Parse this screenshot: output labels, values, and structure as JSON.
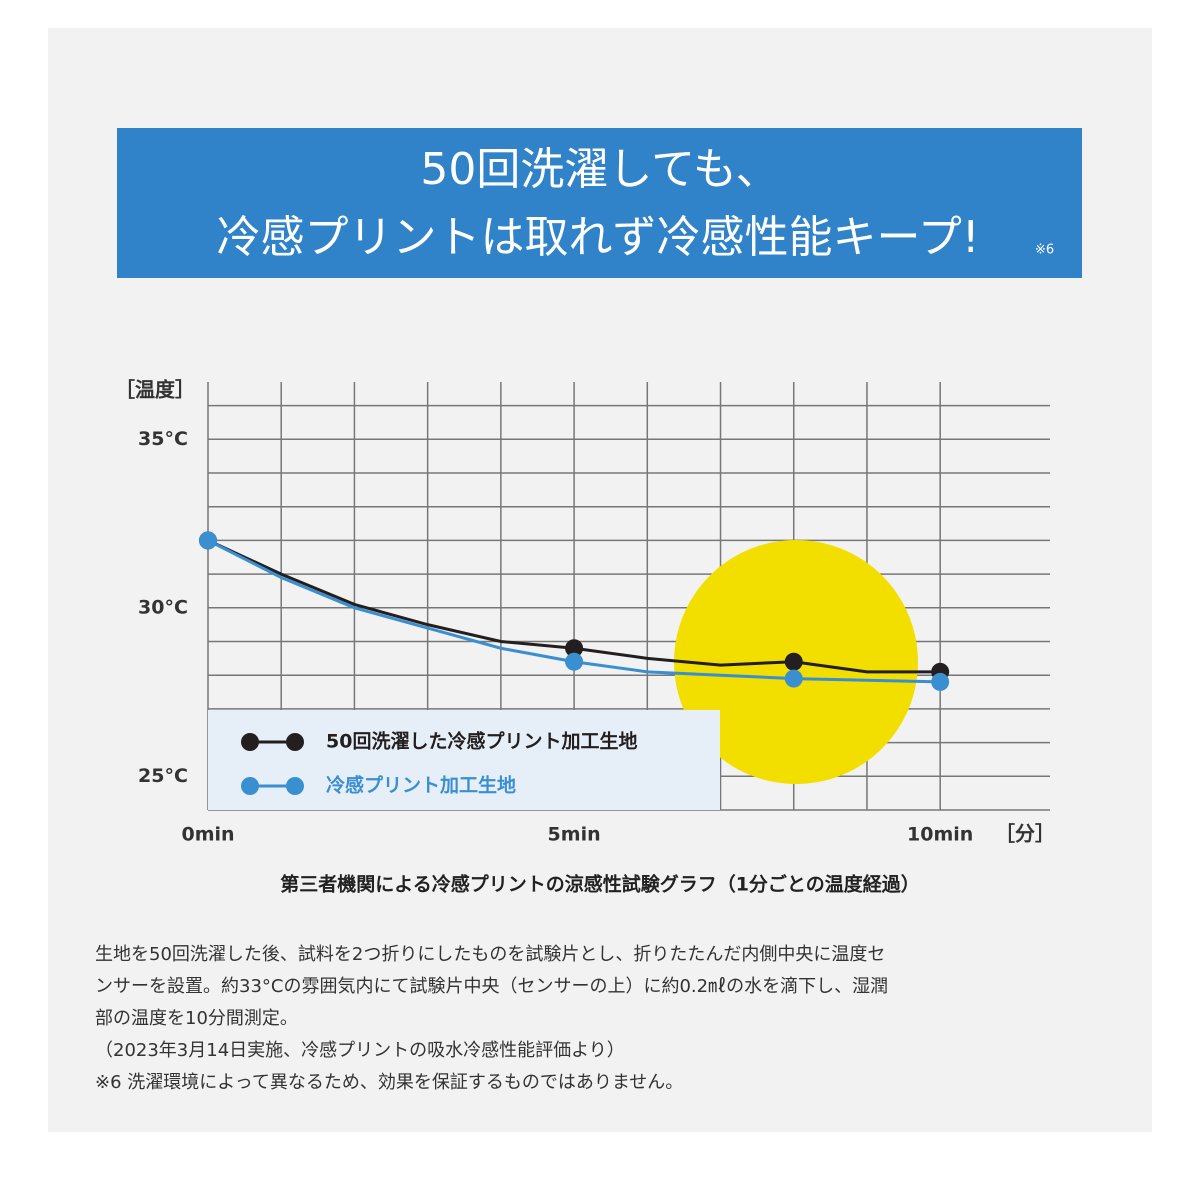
{
  "chart_data": {
    "type": "line",
    "title_lines": [
      "50回洗濯しても、",
      "冷感プリントは取れず冷感性能キープ!"
    ],
    "title_note": "※6",
    "y_label": "［温度］",
    "x_label": "［分］",
    "x": [
      0,
      1,
      2,
      3,
      4,
      5,
      6,
      7,
      8,
      9,
      10
    ],
    "markers_at": [
      0,
      5,
      8,
      10
    ],
    "series": [
      {
        "name": "50回洗濯した冷感プリント加工生地",
        "color": "#231f20",
        "values": [
          32.0,
          31.0,
          30.1,
          29.5,
          29.0,
          28.8,
          28.5,
          28.3,
          28.4,
          28.1,
          28.1
        ]
      },
      {
        "name": "冷感プリント加工生地",
        "color": "#3a8fd0",
        "values": [
          32.0,
          30.9,
          30.0,
          29.4,
          28.8,
          28.4,
          28.1,
          28.0,
          27.9,
          27.85,
          27.8
        ]
      }
    ],
    "xlim": [
      0,
      11.5
    ],
    "ylim": [
      24,
      36.7
    ],
    "xticks": [
      {
        "value": 0,
        "label": "0min"
      },
      {
        "value": 5,
        "label": "5min"
      },
      {
        "value": 10,
        "label": "10min"
      }
    ],
    "yticks": [
      {
        "value": 25,
        "label": "25°C"
      },
      {
        "value": 30,
        "label": "30°C"
      },
      {
        "value": 35,
        "label": "35°C"
      }
    ],
    "x_grid": [
      0,
      1,
      2,
      3,
      4,
      5,
      6,
      7,
      8,
      9,
      10
    ],
    "y_grid": [
      25,
      26,
      27,
      28,
      29,
      30,
      31,
      32,
      33,
      34,
      35,
      36
    ],
    "caption": "第三者機関による冷感プリントの涼感性試験グラフ（1分ごとの温度経過）",
    "notes": [
      "生地を50回洗濯した後、試料を2つ折りにしたものを試験片とし、折りたたんだ内側中央に温度セ",
      "ンサーを設置。約33°Cの雰囲気内にて試験片中央（センサーの上）に約0.2㎖の水を滴下し、湿潤",
      "部の温度を10分間測定。",
      "（2023年3月14日実施、冷感プリントの吸水冷感性能評価より）",
      "※6 洗濯環境によって異なるため、効果を保証するものではありません。"
    ]
  }
}
